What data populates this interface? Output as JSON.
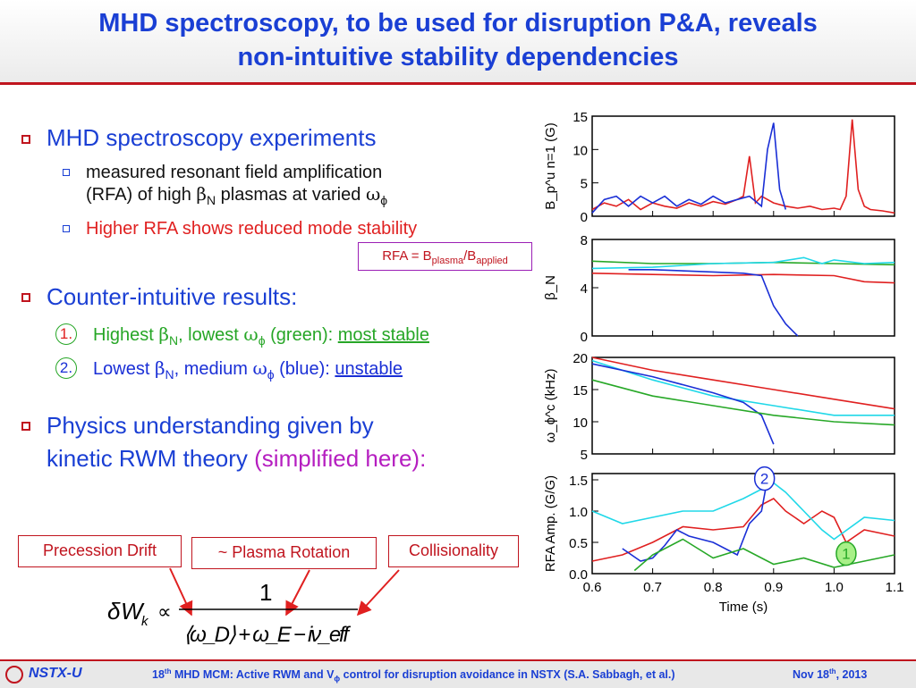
{
  "title": {
    "line1": "MHD spectroscopy, to be used for disruption P&A, reveals",
    "line2": "non-intuitive stability dependencies"
  },
  "bullets": {
    "b1": "MHD spectroscopy experiments",
    "b1_sub1_line1": "measured resonant field amplification",
    "b1_sub1_line2a": "(RFA) of high ",
    "b1_sub1_line2b": "β",
    "b1_sub1_line2c": "N",
    "b1_sub1_line2d": " plasmas at varied ",
    "b1_sub1_line2e": "ω",
    "b1_sub1_line2f": "ϕ",
    "b1_sub2": "Higher RFA shows reduced mode stability",
    "b2": "Counter-intuitive results:",
    "b2_item1_num": "1.",
    "b2_item1_a": "Highest ",
    "b2_item1_b": "β",
    "b2_item1_c": "N",
    "b2_item1_d": ", lowest ",
    "b2_item1_e": "ω",
    "b2_item1_f": "ϕ",
    "b2_item1_g": " (green): ",
    "b2_item1_h": "most stable",
    "b2_item2_num": "2.",
    "b2_item2_a": "Lowest ",
    "b2_item2_b": "β",
    "b2_item2_c": "N",
    "b2_item2_d": ", medium ",
    "b2_item2_e": "ω",
    "b2_item2_f": "ϕ",
    "b2_item2_g": " (blue): ",
    "b2_item2_h": "unstable",
    "b3_line1": "Physics understanding given by",
    "b3_line2a": "kinetic RWM theory ",
    "b3_line2b": "(simplified here):"
  },
  "rfa_note": {
    "a": "RFA = B",
    "b": "plasma",
    "c": "/B",
    "d": "applied"
  },
  "labels": {
    "precession": "Precession Drift",
    "rotation": "~ Plasma Rotation",
    "collisionality": "Collisionality"
  },
  "equation": {
    "lhs_delta": "δ",
    "lhs_w": "W",
    "lhs_k": "k",
    "proportional": "∝",
    "numerator": "1",
    "denominator": "⟨ω_D⟩ + ω_E − iν_eff"
  },
  "footer": {
    "logo": "NSTX-U",
    "a": "18",
    "b": "th",
    "c": " MHD MCM: Active RWM and V",
    "d": "ϕ",
    "e": " control for disruption avoidance in NSTX (S.A. Sabbagh, et al.)",
    "date_a": "Nov 18",
    "date_b": "th",
    "date_c": ", 2013"
  },
  "colors": {
    "red": "#e02020",
    "blue": "#1a2fd6",
    "cyan": "#20d8e8",
    "green": "#27a827",
    "title": "#1a3fd4"
  },
  "chart_data": [
    {
      "type": "line",
      "ylabel": "B_p^u n=1 (G)",
      "xlim": [
        0.6,
        1.1
      ],
      "ylim": [
        0,
        15
      ],
      "yticks": [
        0,
        5,
        10,
        15
      ],
      "series": [
        {
          "color": "red",
          "x": [
            0.6,
            0.62,
            0.64,
            0.66,
            0.68,
            0.7,
            0.72,
            0.74,
            0.76,
            0.78,
            0.8,
            0.82,
            0.84,
            0.85,
            0.86,
            0.87,
            0.88,
            0.9,
            0.92,
            0.94,
            0.96,
            0.98,
            1.0,
            1.01,
            1.02,
            1.03,
            1.04,
            1.05,
            1.06,
            1.08,
            1.1
          ],
          "y": [
            1,
            2,
            1.5,
            2.5,
            1,
            2,
            1.5,
            1.2,
            2,
            1.5,
            2.2,
            1.8,
            2.5,
            3,
            9,
            2,
            3,
            2,
            1.5,
            1.2,
            1.5,
            1,
            1.2,
            1,
            3,
            14.5,
            4,
            1.5,
            1,
            0.8,
            0.5
          ]
        },
        {
          "color": "blue",
          "x": [
            0.6,
            0.62,
            0.64,
            0.66,
            0.68,
            0.7,
            0.72,
            0.74,
            0.76,
            0.78,
            0.8,
            0.82,
            0.84,
            0.86,
            0.88,
            0.89,
            0.9,
            0.91,
            0.92
          ],
          "y": [
            0.5,
            2.5,
            3,
            1.5,
            3,
            2,
            3,
            1.5,
            2.5,
            1.8,
            3,
            2,
            2.5,
            3,
            1.5,
            10,
            14,
            4,
            1
          ]
        }
      ]
    },
    {
      "type": "line",
      "ylabel": "β_N",
      "xlim": [
        0.6,
        1.1
      ],
      "ylim": [
        0,
        8
      ],
      "yticks": [
        0,
        4,
        8
      ],
      "series": [
        {
          "color": "green",
          "x": [
            0.6,
            0.7,
            0.8,
            0.9,
            1.0,
            1.1
          ],
          "y": [
            6.2,
            6.0,
            6.0,
            6.1,
            6.0,
            5.9
          ]
        },
        {
          "color": "cyan",
          "x": [
            0.6,
            0.7,
            0.8,
            0.9,
            0.95,
            0.98,
            1.0,
            1.05,
            1.1
          ],
          "y": [
            5.6,
            5.7,
            6.0,
            6.1,
            6.5,
            6.0,
            6.3,
            6.0,
            6.1
          ]
        },
        {
          "color": "red",
          "x": [
            0.6,
            0.7,
            0.8,
            0.9,
            1.0,
            1.05,
            1.1
          ],
          "y": [
            5.2,
            5.1,
            5.0,
            5.1,
            5.0,
            4.5,
            4.4
          ]
        },
        {
          "color": "blue",
          "x": [
            0.66,
            0.7,
            0.8,
            0.85,
            0.88,
            0.9,
            0.92,
            0.94
          ],
          "y": [
            5.5,
            5.5,
            5.3,
            5.2,
            5.0,
            2.5,
            1.0,
            0
          ]
        }
      ]
    },
    {
      "type": "line",
      "ylabel": "ω_ϕ^c (kHz)",
      "xlim": [
        0.6,
        1.1
      ],
      "ylim": [
        5,
        20
      ],
      "yticks": [
        5,
        10,
        15,
        20
      ],
      "series": [
        {
          "color": "red",
          "x": [
            0.6,
            0.7,
            0.8,
            0.9,
            1.0,
            1.1
          ],
          "y": [
            20,
            18,
            16.5,
            15,
            13.5,
            12
          ]
        },
        {
          "color": "cyan",
          "x": [
            0.6,
            0.7,
            0.8,
            0.9,
            1.0,
            1.1
          ],
          "y": [
            19.5,
            16.5,
            14,
            12.5,
            11,
            11
          ]
        },
        {
          "color": "blue",
          "x": [
            0.6,
            0.7,
            0.8,
            0.85,
            0.88,
            0.9
          ],
          "y": [
            19,
            17,
            14.5,
            13,
            11,
            6.5
          ]
        },
        {
          "color": "green",
          "x": [
            0.6,
            0.7,
            0.8,
            0.9,
            1.0,
            1.1
          ],
          "y": [
            16.5,
            14,
            12.5,
            11,
            10,
            9.5
          ]
        }
      ]
    },
    {
      "type": "line",
      "ylabel": "RFA Amp. (G/G)",
      "xlabel": "Time (s)",
      "xlim": [
        0.6,
        1.1
      ],
      "ylim": [
        0,
        1.6
      ],
      "yticks": [
        0.0,
        0.5,
        1.0,
        1.5
      ],
      "xticks": [
        0.6,
        0.7,
        0.8,
        0.9,
        1.0,
        1.1
      ],
      "series": [
        {
          "color": "red",
          "x": [
            0.6,
            0.65,
            0.7,
            0.75,
            0.8,
            0.85,
            0.88,
            0.9,
            0.92,
            0.95,
            0.98,
            1.0,
            1.02,
            1.05,
            1.1
          ],
          "y": [
            0.2,
            0.3,
            0.5,
            0.75,
            0.7,
            0.75,
            1.1,
            1.2,
            1.0,
            0.8,
            1.0,
            0.9,
            0.5,
            0.7,
            0.6
          ]
        },
        {
          "color": "cyan",
          "x": [
            0.6,
            0.65,
            0.7,
            0.75,
            0.8,
            0.85,
            0.9,
            0.92,
            0.95,
            0.98,
            1.0,
            1.05,
            1.1
          ],
          "y": [
            1.0,
            0.8,
            0.9,
            1.0,
            1.0,
            1.2,
            1.45,
            1.3,
            1.0,
            0.7,
            0.55,
            0.9,
            0.85
          ]
        },
        {
          "color": "blue",
          "x": [
            0.65,
            0.68,
            0.7,
            0.72,
            0.74,
            0.76,
            0.8,
            0.84,
            0.86,
            0.88,
            0.89
          ],
          "y": [
            0.4,
            0.2,
            0.25,
            0.45,
            0.7,
            0.6,
            0.5,
            0.3,
            0.8,
            1.0,
            1.52
          ]
        },
        {
          "color": "green",
          "x": [
            0.67,
            0.7,
            0.75,
            0.8,
            0.85,
            0.9,
            0.95,
            1.0,
            1.05,
            1.1
          ],
          "y": [
            0.05,
            0.3,
            0.55,
            0.25,
            0.4,
            0.15,
            0.25,
            0.1,
            0.2,
            0.3
          ]
        }
      ],
      "annotations": [
        {
          "text": "2",
          "x": 0.885,
          "y": 1.52
        },
        {
          "text": "1",
          "x": 1.02,
          "y": 0.32
        }
      ]
    }
  ]
}
